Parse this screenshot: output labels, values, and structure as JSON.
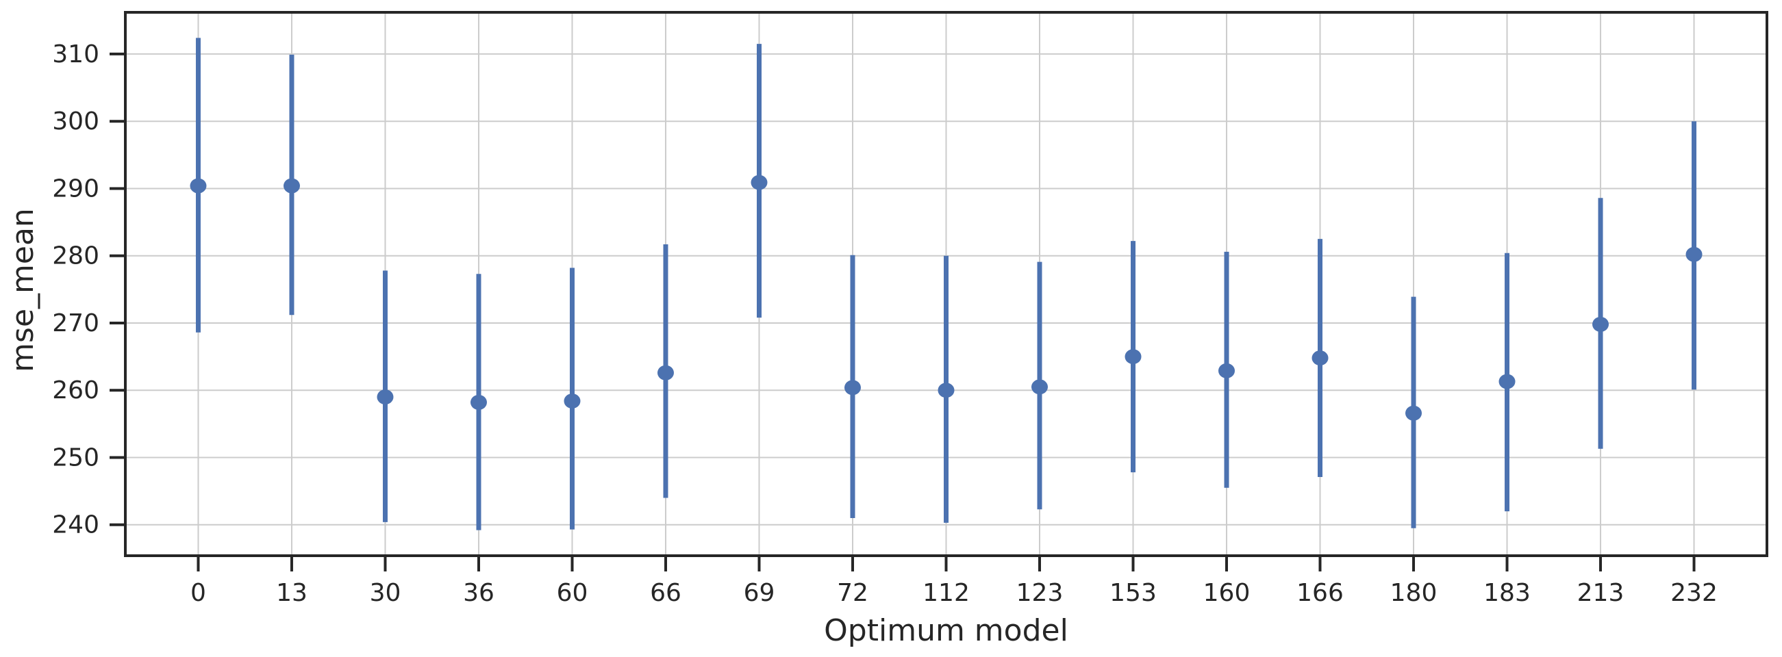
{
  "chart_data": {
    "type": "scatter",
    "subtype": "point_estimates_with_error_bars",
    "title": "",
    "xlabel": "Optimum model",
    "ylabel": "mse_mean",
    "categories": [
      "0",
      "13",
      "30",
      "36",
      "60",
      "66",
      "69",
      "72",
      "112",
      "123",
      "153",
      "160",
      "166",
      "180",
      "183",
      "213",
      "232"
    ],
    "series": [
      {
        "name": "mse_mean",
        "means": [
          290.4,
          290.4,
          259.0,
          258.2,
          258.4,
          262.6,
          290.9,
          260.4,
          260.0,
          260.5,
          265.0,
          262.9,
          264.8,
          256.6,
          261.3,
          269.8,
          280.2
        ],
        "ci_low": [
          268.6,
          271.2,
          240.4,
          239.2,
          239.3,
          244.0,
          270.8,
          241.0,
          240.3,
          242.3,
          247.8,
          245.5,
          247.1,
          239.5,
          242.0,
          251.3,
          260.1
        ],
        "ci_high": [
          312.4,
          309.9,
          277.8,
          277.3,
          278.2,
          281.7,
          311.5,
          280.1,
          280.0,
          279.1,
          282.2,
          280.6,
          282.5,
          273.9,
          280.4,
          288.6,
          300.0
        ]
      }
    ],
    "yticks": [
      240,
      250,
      260,
      270,
      280,
      290,
      300,
      310
    ],
    "ylim": [
      235.4,
      316.2
    ],
    "grid": true,
    "legend": "none",
    "colors": {
      "point": "#4C72B0",
      "error_bar": "#4C72B0",
      "grid": "#CCCCCC",
      "spine": "#262626",
      "tick": "#262626",
      "text": "#262626",
      "background": "#FFFFFF"
    }
  }
}
